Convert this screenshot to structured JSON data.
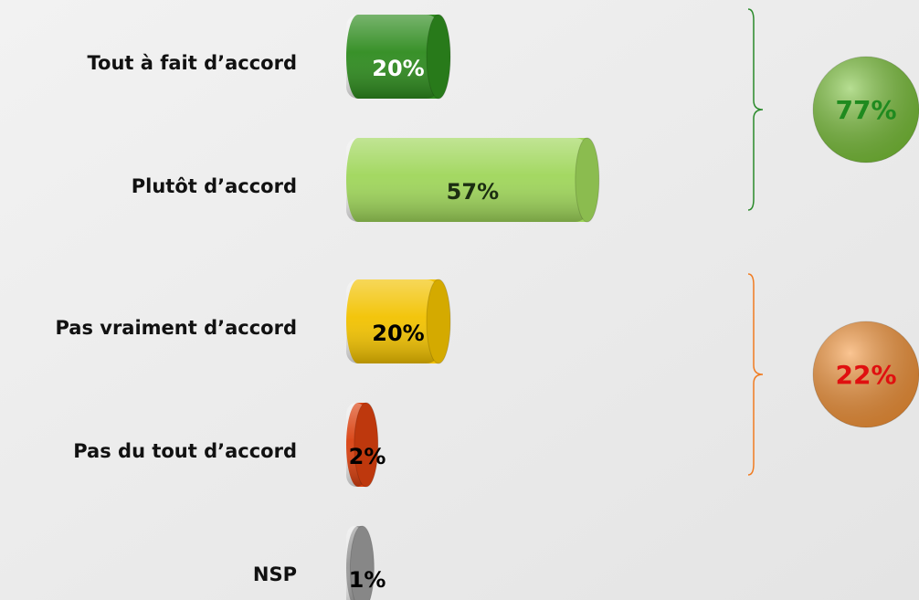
{
  "chart_data": {
    "type": "bar",
    "orientation": "horizontal",
    "categories": [
      "Tout à fait d’accord",
      "Plutôt d’accord",
      "Pas vraiment d’accord",
      "Pas du tout d’accord",
      "NSP"
    ],
    "values": [
      20,
      57,
      20,
      2,
      1
    ],
    "value_labels": [
      "20%",
      "57%",
      "20%",
      "2%",
      "1%"
    ],
    "colors": [
      "#2e8b1e",
      "#9fd65a",
      "#f2c200",
      "#d9400f",
      "#9a9a9a"
    ],
    "label_colors": [
      "#ffffff",
      "#1c2e12",
      "#000000",
      "#000000",
      "#000000"
    ],
    "groups": [
      {
        "value": 77,
        "label": "77%",
        "color": "#7cc43a",
        "text_color": "#1f8a1f",
        "brace_color": "#2a8a2a",
        "members": [
          0,
          1
        ]
      },
      {
        "value": 22,
        "label": "22%",
        "color": "#f7963a",
        "text_color": "#e01010",
        "brace_color": "#f07b20",
        "members": [
          2,
          3
        ]
      }
    ]
  }
}
